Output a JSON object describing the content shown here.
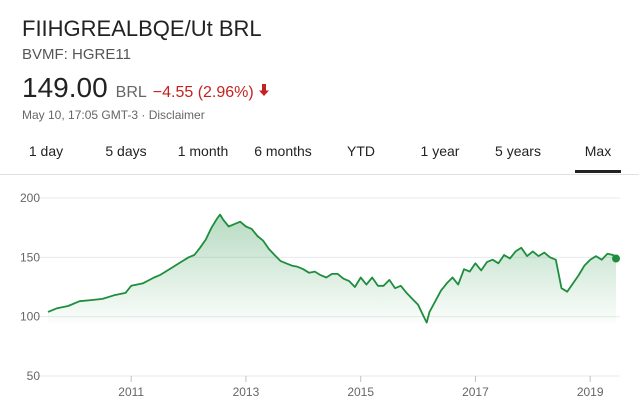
{
  "header": {
    "title": "FIIHGREALBQE/Ut BRL",
    "ticker": "BVMF: HGRE11",
    "price": "149.00",
    "currency": "BRL",
    "change": "−4.55 (2.96%)",
    "meta": "May 10, 17:05 GMT-3 · Disclaimer"
  },
  "tabs": [
    {
      "label": "1 day",
      "active": false
    },
    {
      "label": "5 days",
      "active": false
    },
    {
      "label": "1 month",
      "active": false
    },
    {
      "label": "6 months",
      "active": false
    },
    {
      "label": "YTD",
      "active": false
    },
    {
      "label": "1 year",
      "active": false
    },
    {
      "label": "5 years",
      "active": false
    },
    {
      "label": "Max",
      "active": true
    }
  ],
  "colors": {
    "line": "#1e8e3e",
    "negative": "#c5221f",
    "grid": "#e8eaed"
  },
  "chart_data": {
    "type": "area",
    "x_tick_labels": [
      "2011",
      "2013",
      "2015",
      "2017",
      "2019"
    ],
    "y_tick_labels": [
      "50",
      "100",
      "150",
      "200"
    ],
    "xlim": [
      2009.55,
      2019.45
    ],
    "ylim": [
      50,
      200
    ],
    "grid": true,
    "series": [
      {
        "x": [
          2009.55,
          2009.7,
          2009.9,
          2010.1,
          2010.3,
          2010.5,
          2010.7,
          2010.9,
          2011.0,
          2011.2,
          2011.4,
          2011.5,
          2011.7,
          2011.9,
          2012.0,
          2012.1,
          2012.2,
          2012.3,
          2012.4,
          2012.5,
          2012.55,
          2012.6,
          2012.7,
          2012.8,
          2012.9,
          2013.0,
          2013.1,
          2013.2,
          2013.3,
          2013.4,
          2013.5,
          2013.6,
          2013.7,
          2013.8,
          2013.9,
          2014.0,
          2014.1,
          2014.2,
          2014.3,
          2014.4,
          2014.5,
          2014.6,
          2014.7,
          2014.8,
          2014.9,
          2015.0,
          2015.1,
          2015.2,
          2015.3,
          2015.4,
          2015.5,
          2015.6,
          2015.7,
          2015.8,
          2015.9,
          2016.0,
          2016.1,
          2016.15,
          2016.2,
          2016.3,
          2016.4,
          2016.5,
          2016.6,
          2016.7,
          2016.8,
          2016.9,
          2017.0,
          2017.1,
          2017.2,
          2017.3,
          2017.4,
          2017.5,
          2017.6,
          2017.7,
          2017.8,
          2017.9,
          2018.0,
          2018.1,
          2018.2,
          2018.3,
          2018.4,
          2018.5,
          2018.6,
          2018.7,
          2018.8,
          2018.9,
          2019.0,
          2019.1,
          2019.2,
          2019.3,
          2019.4,
          2019.45
        ],
        "values": [
          104,
          107,
          109,
          113,
          114,
          115,
          118,
          120,
          126,
          128,
          133,
          135,
          141,
          147,
          150,
          152,
          158,
          165,
          175,
          183,
          186,
          182,
          176,
          178,
          180,
          176,
          174,
          168,
          164,
          157,
          152,
          147,
          145,
          143,
          142,
          140,
          137,
          138,
          135,
          133,
          136,
          136,
          132,
          130,
          125,
          133,
          127,
          133,
          126,
          126,
          131,
          124,
          126,
          120,
          115,
          110,
          100,
          95,
          104,
          113,
          122,
          128,
          133,
          127,
          140,
          138,
          145,
          139,
          146,
          148,
          145,
          152,
          149,
          155,
          158,
          151,
          155,
          151,
          154,
          150,
          148,
          124,
          121,
          128,
          135,
          143,
          148,
          151,
          148,
          153,
          152,
          149
        ]
      }
    ]
  }
}
